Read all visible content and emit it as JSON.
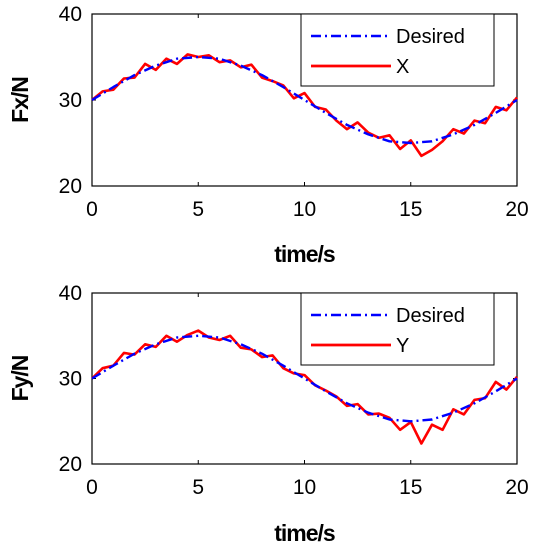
{
  "chart_data": [
    {
      "type": "line",
      "xlabel": "time/s",
      "ylabel": "Fx/N",
      "xlim": [
        0,
        20
      ],
      "ylim": [
        20,
        40
      ],
      "xticks": [
        "0",
        "5",
        "10",
        "15",
        "20"
      ],
      "yticks": [
        "20",
        "30",
        "40"
      ],
      "grid": false,
      "legend_position": "top-right",
      "series": [
        {
          "name": "Desired",
          "color": "#0000ff",
          "style": "dash-dot",
          "x": [
            0,
            1,
            2,
            3,
            4,
            5,
            6,
            7,
            8,
            9,
            10,
            11,
            12,
            13,
            14,
            15,
            16,
            17,
            18,
            19,
            20
          ],
          "y": [
            30.0,
            31.5,
            32.9,
            34.0,
            34.8,
            35.0,
            34.8,
            34.0,
            32.9,
            31.5,
            30.0,
            28.5,
            27.1,
            26.0,
            25.2,
            25.0,
            25.2,
            26.0,
            27.1,
            28.5,
            30.0
          ]
        },
        {
          "name": "X",
          "color": "#ff0000",
          "style": "solid",
          "x": [
            0,
            0.5,
            1,
            1.5,
            2,
            2.5,
            3,
            3.5,
            4,
            4.5,
            5,
            5.5,
            6,
            6.5,
            7,
            7.5,
            8,
            8.5,
            9,
            9.5,
            10,
            10.5,
            11,
            11.5,
            12,
            12.5,
            13,
            13.5,
            14,
            14.5,
            15,
            15.5,
            16,
            16.5,
            17,
            17.5,
            18,
            18.5,
            19,
            19.5,
            20
          ],
          "y": [
            30.0,
            31.0,
            31.2,
            32.5,
            32.6,
            34.2,
            33.5,
            34.8,
            34.2,
            35.3,
            35.0,
            35.2,
            34.4,
            34.6,
            33.8,
            34.1,
            32.6,
            32.2,
            31.7,
            30.2,
            30.8,
            29.2,
            28.9,
            27.6,
            26.6,
            27.4,
            26.2,
            25.6,
            25.9,
            24.3,
            25.3,
            23.5,
            24.2,
            25.2,
            26.6,
            26.1,
            27.6,
            27.3,
            29.2,
            28.8,
            30.3
          ]
        }
      ]
    },
    {
      "type": "line",
      "xlabel": "time/s",
      "ylabel": "Fy/N",
      "xlim": [
        0,
        20
      ],
      "ylim": [
        20,
        40
      ],
      "xticks": [
        "0",
        "5",
        "10",
        "15",
        "20"
      ],
      "yticks": [
        "20",
        "30",
        "40"
      ],
      "grid": false,
      "legend_position": "top-right",
      "series": [
        {
          "name": "Desired",
          "color": "#0000ff",
          "style": "dash-dot",
          "x": [
            0,
            1,
            2,
            3,
            4,
            5,
            6,
            7,
            8,
            9,
            10,
            11,
            12,
            13,
            14,
            15,
            16,
            17,
            18,
            19,
            20
          ],
          "y": [
            30.0,
            31.5,
            32.9,
            34.0,
            34.8,
            35.0,
            34.8,
            34.0,
            32.9,
            31.5,
            30.0,
            28.5,
            27.1,
            26.0,
            25.2,
            25.0,
            25.2,
            26.0,
            27.1,
            28.5,
            30.0
          ]
        },
        {
          "name": "Y",
          "color": "#ff0000",
          "style": "solid",
          "x": [
            0,
            0.5,
            1,
            1.5,
            2,
            2.5,
            3,
            3.5,
            4,
            4.5,
            5,
            5.5,
            6,
            6.5,
            7,
            7.5,
            8,
            8.5,
            9,
            9.5,
            10,
            10.5,
            11,
            11.5,
            12,
            12.5,
            13,
            13.5,
            14,
            14.5,
            15,
            15.5,
            16,
            16.5,
            17,
            17.5,
            18,
            18.5,
            19,
            19.5,
            20
          ],
          "y": [
            30.0,
            31.2,
            31.5,
            33.0,
            32.8,
            34.0,
            33.7,
            35.0,
            34.3,
            35.1,
            35.6,
            34.8,
            34.5,
            35.0,
            33.6,
            33.4,
            32.5,
            32.7,
            31.2,
            30.6,
            30.4,
            29.2,
            28.6,
            27.9,
            26.8,
            27.0,
            25.8,
            25.9,
            25.4,
            24.0,
            24.9,
            22.4,
            24.6,
            24.0,
            26.4,
            25.8,
            27.5,
            27.7,
            29.6,
            28.7,
            30.2
          ]
        }
      ]
    }
  ]
}
